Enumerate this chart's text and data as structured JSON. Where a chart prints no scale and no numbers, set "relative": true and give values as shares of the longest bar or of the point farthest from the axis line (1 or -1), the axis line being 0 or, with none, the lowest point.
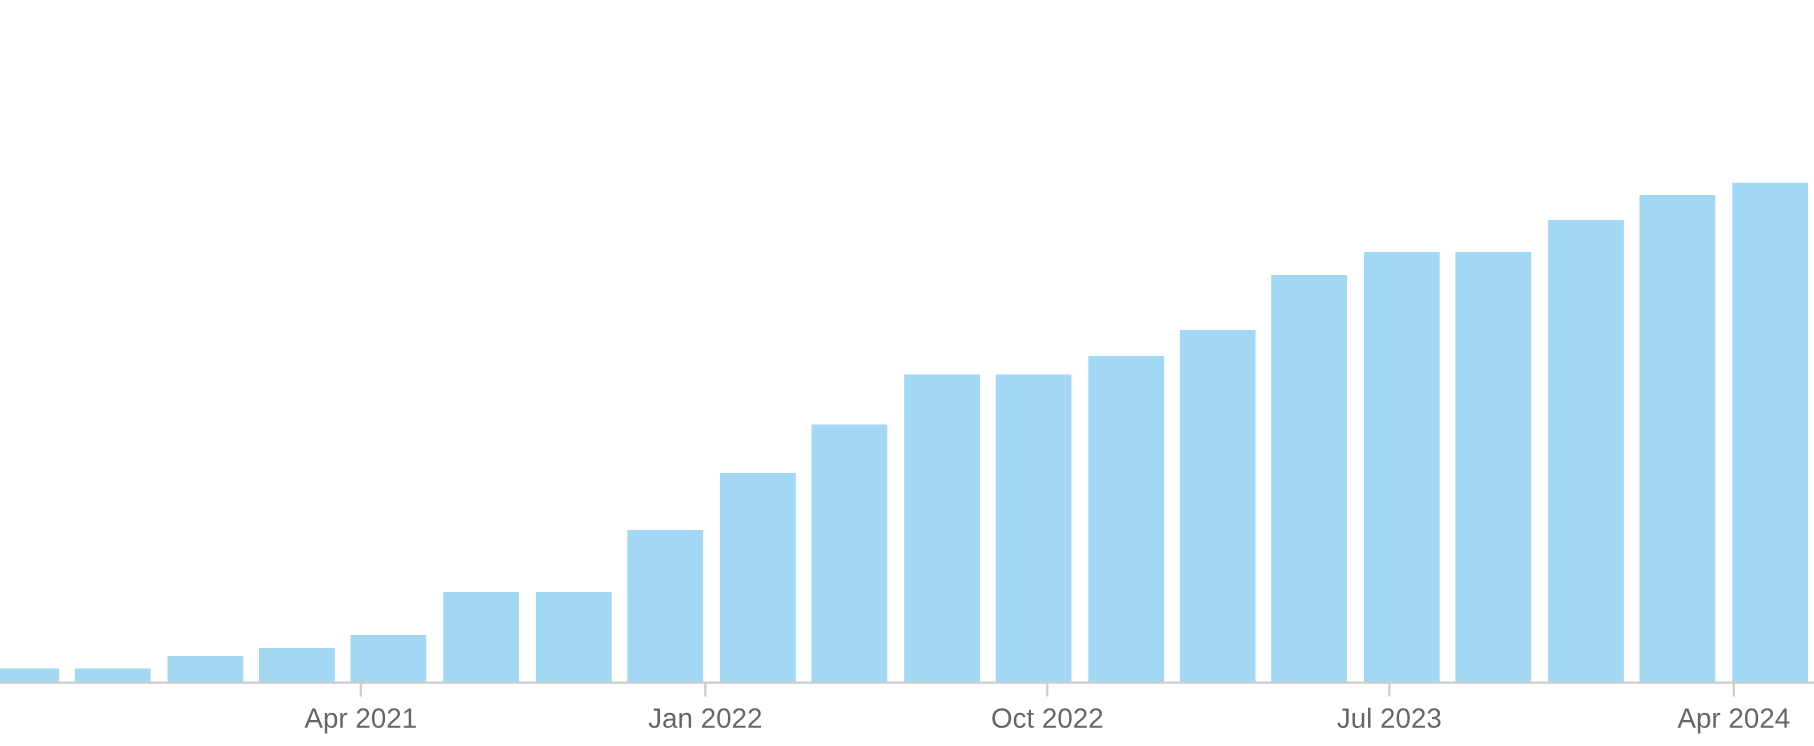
{
  "chart_data": {
    "type": "bar",
    "relative": true,
    "color": "#a3d8f4",
    "x": [
      "2020-07-04",
      "2020-09-15",
      "2020-11-28",
      "2021-02-09",
      "2021-04-23",
      "2021-07-06",
      "2021-09-18",
      "2021-11-30",
      "2022-02-12",
      "2022-04-26",
      "2022-07-09",
      "2022-09-20",
      "2022-12-03",
      "2023-02-14",
      "2023-04-28",
      "2023-07-11",
      "2023-09-22",
      "2023-12-05",
      "2024-02-16",
      "2024-04-30"
    ],
    "values": [
      0.028,
      0.028,
      0.053,
      0.069,
      0.095,
      0.181,
      0.181,
      0.305,
      0.419,
      0.516,
      0.616,
      0.616,
      0.653,
      0.705,
      0.815,
      0.861,
      0.861,
      0.925,
      0.975,
      1
    ],
    "xlim": [
      "2020-06-17",
      "2024-06-04"
    ],
    "xticks": [
      {
        "value": "2021-04-01",
        "label": "Apr 2021"
      },
      {
        "value": "2022-01-01",
        "label": "Jan 2022"
      },
      {
        "value": "2022-10-01",
        "label": "Oct 2022"
      },
      {
        "value": "2023-07-01",
        "label": "Jul 2023"
      },
      {
        "value": "2024-04-01",
        "label": "Apr 2024"
      }
    ],
    "grid": false,
    "legend": false
  }
}
